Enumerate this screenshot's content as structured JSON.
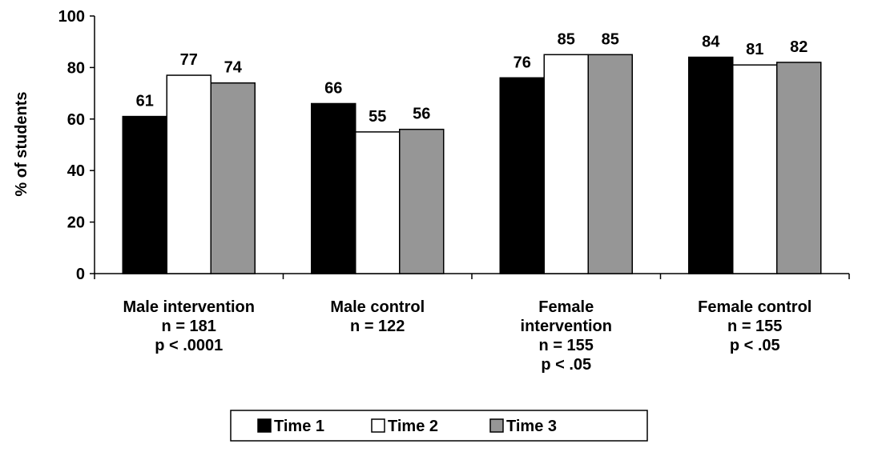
{
  "chart_data": {
    "type": "bar",
    "ylabel": "% of students",
    "ylim": [
      0,
      100
    ],
    "yticks": [
      "0",
      "20",
      "40",
      "60",
      "80",
      "100"
    ],
    "grid": false,
    "legend_position": "bottom",
    "categories": [
      {
        "lines": [
          "Male intervention",
          "n = 181",
          "p < .0001"
        ]
      },
      {
        "lines": [
          "Male control",
          "n = 122"
        ]
      },
      {
        "lines": [
          "Female",
          "intervention",
          "n = 155",
          "p < .05"
        ]
      },
      {
        "lines": [
          "Female control",
          "n = 155",
          "p < .05"
        ]
      }
    ],
    "series": [
      {
        "name": "Time 1",
        "color": "#000000",
        "values": [
          61,
          66,
          76,
          84
        ]
      },
      {
        "name": "Time 2",
        "color": "#ffffff",
        "values": [
          77,
          55,
          85,
          81
        ]
      },
      {
        "name": "Time 3",
        "color": "#969696",
        "values": [
          74,
          56,
          85,
          82
        ]
      }
    ]
  }
}
